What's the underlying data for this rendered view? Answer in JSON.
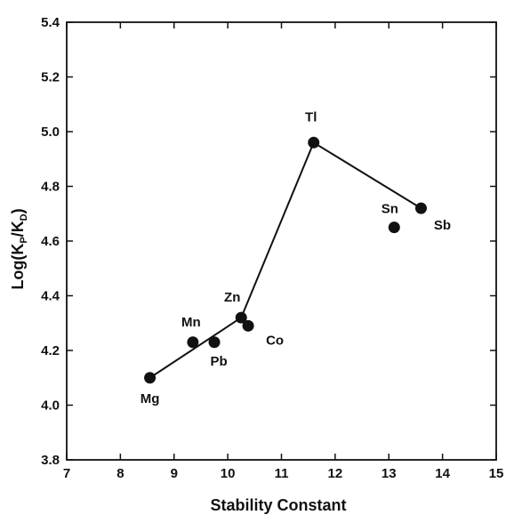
{
  "chart_data": {
    "type": "scatter",
    "title": "",
    "xlabel": "Stability Constant",
    "ylabel_main": "Log(K",
    "ylabel_sub1": "P",
    "ylabel_mid": "/K",
    "ylabel_sub2": "D",
    "ylabel_end": ")",
    "xlim": [
      7,
      15
    ],
    "ylim": [
      3.8,
      5.4
    ],
    "x_ticks": [
      "7",
      "8",
      "9",
      "10",
      "11",
      "12",
      "13",
      "14",
      "15"
    ],
    "y_ticks": [
      "3.8",
      "4.0",
      "4.2",
      "4.4",
      "4.6",
      "4.8",
      "5.0",
      "5.2",
      "5.4"
    ],
    "grid": false,
    "points": [
      {
        "label": "Mg",
        "x": 8.55,
        "y": 4.1
      },
      {
        "label": "Mn",
        "x": 9.35,
        "y": 4.23
      },
      {
        "label": "Pb",
        "x": 9.75,
        "y": 4.23
      },
      {
        "label": "Zn",
        "x": 10.25,
        "y": 4.32
      },
      {
        "label": "Co",
        "x": 10.38,
        "y": 4.29
      },
      {
        "label": "Tl",
        "x": 11.6,
        "y": 4.96
      },
      {
        "label": "Sn",
        "x": 13.1,
        "y": 4.65
      },
      {
        "label": "Sb",
        "x": 13.6,
        "y": 4.72
      }
    ],
    "lines": [
      [
        {
          "x": 8.55,
          "y": 4.1
        },
        {
          "x": 10.25,
          "y": 4.32
        }
      ],
      [
        {
          "x": 10.25,
          "y": 4.32
        },
        {
          "x": 11.6,
          "y": 4.96
        }
      ],
      [
        {
          "x": 11.6,
          "y": 4.96
        },
        {
          "x": 13.6,
          "y": 4.72
        }
      ]
    ],
    "marker_color": "#111111",
    "line_color": "#111111"
  }
}
